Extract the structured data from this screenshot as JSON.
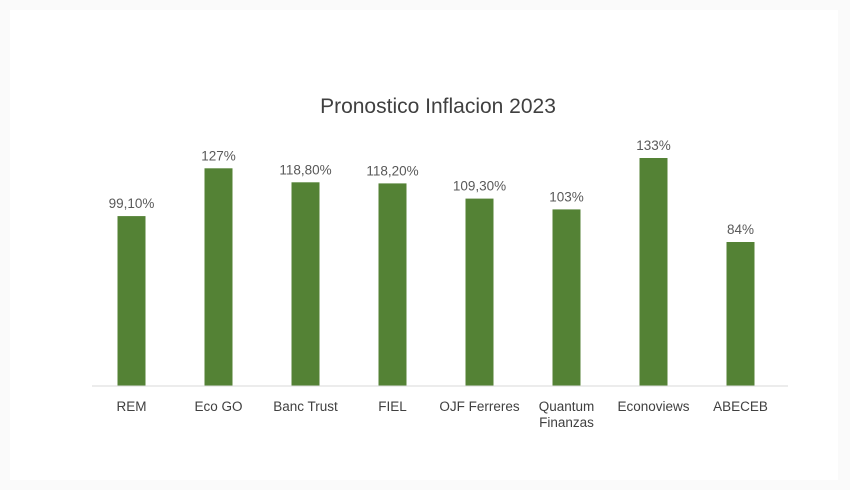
{
  "chart_data": {
    "type": "bar",
    "title": "Pronostico Inflacion 2023",
    "categories": [
      "REM",
      "Eco GO",
      "Banc Trust",
      "FIEL",
      "OJF Ferreres",
      "Quantum Finanzas",
      "Econoviews",
      "ABECEB"
    ],
    "category_lines": [
      [
        "REM"
      ],
      [
        "Eco GO"
      ],
      [
        "Banc Trust"
      ],
      [
        "FIEL"
      ],
      [
        "OJF Ferreres"
      ],
      [
        "Quantum",
        "Finanzas"
      ],
      [
        "Econoviews"
      ],
      [
        "ABECEB"
      ]
    ],
    "values": [
      99.1,
      127,
      118.8,
      118.2,
      109.3,
      103,
      133,
      84
    ],
    "data_labels": [
      "99,10%",
      "127%",
      "118,80%",
      "118,20%",
      "109,30%",
      "103%",
      "133%",
      "84%"
    ],
    "xlabel": "",
    "ylabel": "",
    "ylim": [
      0,
      140
    ],
    "grid": false,
    "legend": "none",
    "colors": {
      "bar": "#548235",
      "axis": "#d9d9d9"
    }
  }
}
